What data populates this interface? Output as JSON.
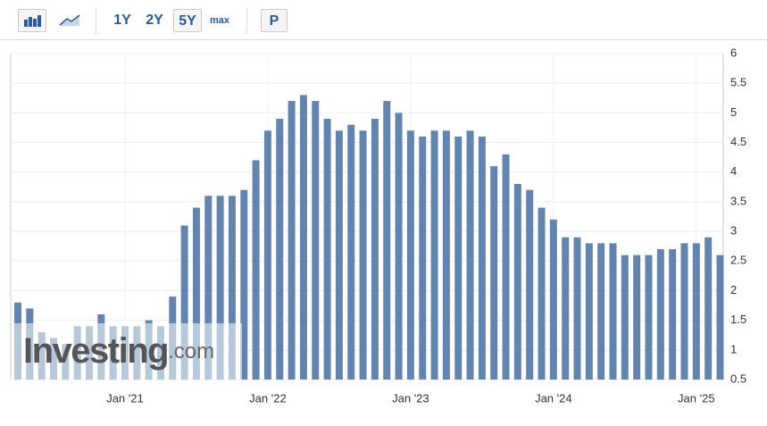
{
  "toolbar": {
    "ranges": [
      "1Y",
      "2Y",
      "5Y",
      "max"
    ],
    "period": "P"
  },
  "chart_data": {
    "type": "bar",
    "categories": [
      null,
      null,
      null,
      null,
      null,
      null,
      null,
      null,
      null,
      "Jan '21",
      null,
      null,
      null,
      null,
      null,
      null,
      null,
      null,
      null,
      null,
      null,
      "Jan '22",
      null,
      null,
      null,
      null,
      null,
      null,
      null,
      null,
      null,
      null,
      null,
      "Jan '23",
      null,
      null,
      null,
      null,
      null,
      null,
      null,
      null,
      null,
      null,
      null,
      "Jan '24",
      null,
      null,
      null,
      null,
      null,
      null,
      null,
      null,
      null,
      null,
      null,
      "Jan '25",
      null,
      null
    ],
    "values": [
      1.8,
      1.7,
      1.3,
      1.2,
      1.1,
      1.4,
      1.4,
      1.6,
      1.4,
      1.4,
      1.4,
      1.5,
      1.4,
      1.9,
      3.1,
      3.4,
      3.6,
      3.6,
      3.6,
      3.7,
      4.2,
      4.7,
      4.9,
      5.2,
      5.3,
      5.2,
      4.9,
      4.7,
      4.8,
      4.7,
      4.9,
      5.2,
      5.0,
      4.7,
      4.6,
      4.7,
      4.7,
      4.6,
      4.7,
      4.6,
      4.1,
      4.3,
      3.8,
      3.7,
      3.4,
      3.2,
      2.9,
      2.9,
      2.8,
      2.8,
      2.8,
      2.6,
      2.6,
      2.6,
      2.7,
      2.7,
      2.8,
      2.8,
      2.9,
      2.6
    ],
    "color": "#6285b0",
    "ylim": [
      0.5,
      6
    ],
    "yticks": [
      0.5,
      1,
      1.5,
      2,
      2.5,
      3,
      3.5,
      4,
      4.5,
      5,
      5.5,
      6
    ],
    "grid": true,
    "watermark": {
      "brand": "Investing",
      "suffix": ".com"
    }
  }
}
